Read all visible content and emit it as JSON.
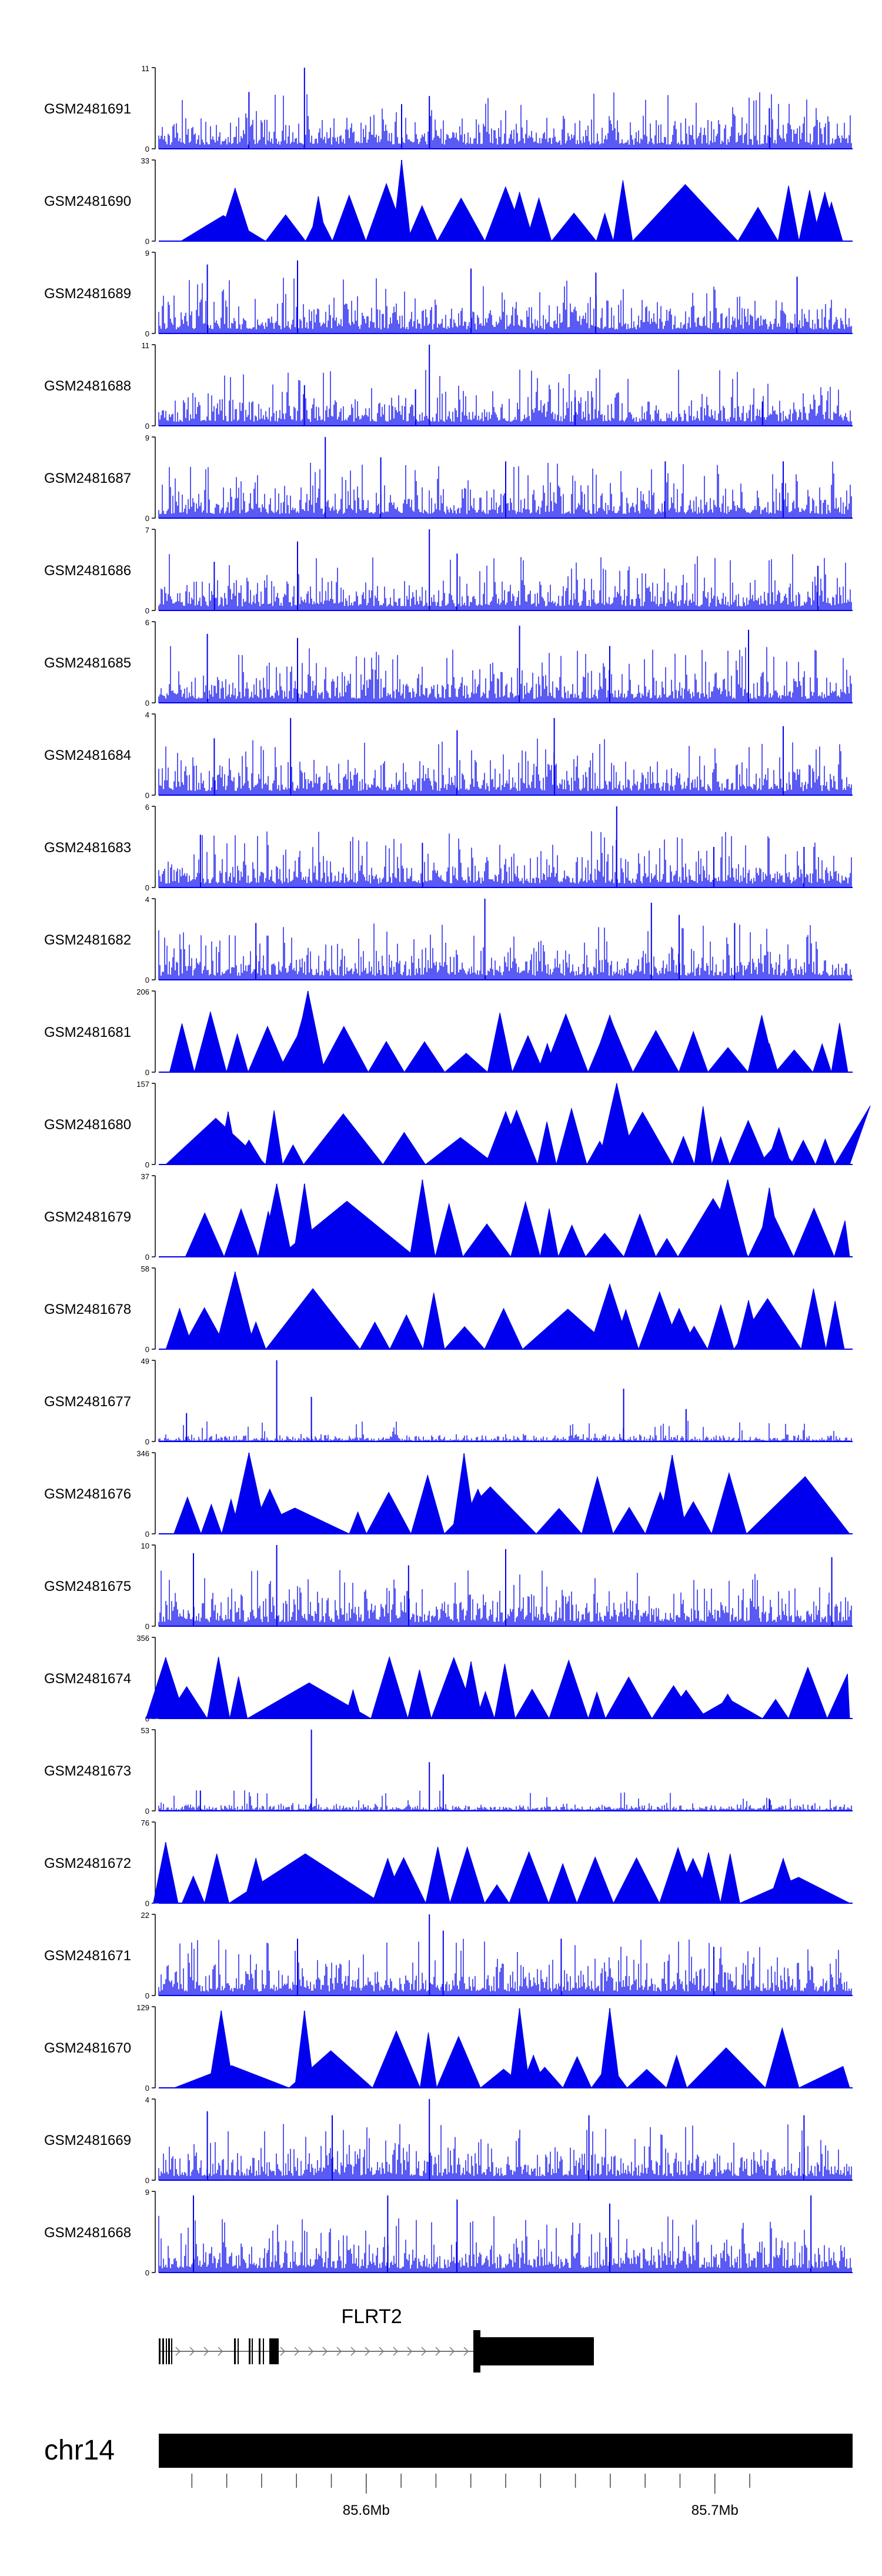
{
  "chart_data": {
    "type": "track-plot",
    "fill_color": "#0000ee",
    "tracks": [
      {
        "name": "GSM2481691",
        "ymin": 0,
        "ymax": 11,
        "style": "dense",
        "seed": 11,
        "peaks": [
          [
            0.21,
            1.0
          ],
          [
            0.13,
            0.7
          ],
          [
            0.39,
            0.65
          ],
          [
            0.35,
            0.55
          ],
          [
            0.88,
            0.5
          ]
        ]
      },
      {
        "name": "GSM2481690",
        "ymin": 0,
        "ymax": 33,
        "style": "triangles",
        "seed": 12,
        "peaks": [
          [
            0.35,
            1.0
          ],
          [
            0.11,
            0.65
          ],
          [
            0.52,
            0.6
          ],
          [
            0.96,
            0.6
          ],
          [
            0.23,
            0.55
          ]
        ]
      },
      {
        "name": "GSM2481689",
        "ymin": 0,
        "ymax": 9,
        "style": "dense",
        "seed": 13,
        "peaks": [
          [
            0.2,
            0.9
          ],
          [
            0.07,
            0.85
          ],
          [
            0.45,
            0.8
          ],
          [
            0.63,
            0.75
          ],
          [
            0.92,
            0.7
          ]
        ]
      },
      {
        "name": "GSM2481688",
        "ymin": 0,
        "ymax": 11,
        "style": "dense",
        "seed": 14,
        "peaks": [
          [
            0.39,
            1.0
          ],
          [
            0.21,
            0.5
          ],
          [
            0.37,
            0.45
          ],
          [
            0.6,
            0.35
          ],
          [
            0.87,
            0.3
          ]
        ]
      },
      {
        "name": "GSM2481687",
        "ymin": 0,
        "ymax": 9,
        "style": "dense",
        "seed": 15,
        "peaks": [
          [
            0.24,
            1.0
          ],
          [
            0.32,
            0.75
          ],
          [
            0.5,
            0.7
          ],
          [
            0.73,
            0.7
          ],
          [
            0.9,
            0.7
          ]
        ]
      },
      {
        "name": "GSM2481686",
        "ymin": 0,
        "ymax": 7,
        "style": "dense",
        "seed": 16,
        "peaks": [
          [
            0.39,
            1.0
          ],
          [
            0.2,
            0.85
          ],
          [
            0.43,
            0.7
          ],
          [
            0.08,
            0.6
          ],
          [
            0.95,
            0.55
          ]
        ]
      },
      {
        "name": "GSM2481685",
        "ymin": 0,
        "ymax": 6,
        "style": "dense",
        "seed": 17,
        "peaks": [
          [
            0.52,
            0.95
          ],
          [
            0.07,
            0.85
          ],
          [
            0.2,
            0.8
          ],
          [
            0.85,
            0.9
          ],
          [
            0.65,
            0.7
          ]
        ]
      },
      {
        "name": "GSM2481684",
        "ymin": 0,
        "ymax": 4,
        "style": "dense",
        "seed": 18,
        "peaks": [
          [
            0.19,
            0.95
          ],
          [
            0.57,
            0.95
          ],
          [
            0.43,
            0.8
          ],
          [
            0.08,
            0.7
          ],
          [
            0.9,
            0.85
          ]
        ]
      },
      {
        "name": "GSM2481683",
        "ymin": 0,
        "ymax": 6,
        "style": "dense",
        "seed": 19,
        "peaks": [
          [
            0.66,
            1.0
          ],
          [
            0.06,
            0.65
          ],
          [
            0.38,
            0.55
          ],
          [
            0.8,
            0.5
          ],
          [
            0.93,
            0.5
          ]
        ]
      },
      {
        "name": "GSM2481682",
        "ymin": 0,
        "ymax": 4,
        "style": "dense",
        "seed": 20,
        "peaks": [
          [
            0.47,
            1.0
          ],
          [
            0.71,
            0.95
          ],
          [
            0.75,
            0.8
          ],
          [
            0.14,
            0.7
          ],
          [
            0.83,
            0.7
          ]
        ]
      },
      {
        "name": "GSM2481681",
        "ymin": 0,
        "ymax": 206,
        "style": "triangles",
        "seed": 21,
        "peaks": [
          [
            0.215,
            1.0
          ],
          [
            0.65,
            0.7
          ],
          [
            0.2,
            0.45
          ],
          [
            0.88,
            0.35
          ],
          [
            0.56,
            0.35
          ]
        ]
      },
      {
        "name": "GSM2481680",
        "ymin": 0,
        "ymax": 157,
        "style": "triangles",
        "seed": 22,
        "peaks": [
          [
            0.1,
            0.65
          ],
          [
            0.5,
            0.65
          ],
          [
            0.66,
            1.0
          ],
          [
            0.13,
            0.3
          ],
          [
            0.89,
            0.25
          ]
        ]
      },
      {
        "name": "GSM2481679",
        "ymin": 0,
        "ymax": 37,
        "style": "triangles",
        "seed": 23,
        "peaks": [
          [
            0.38,
            0.95
          ],
          [
            0.17,
            0.9
          ],
          [
            0.21,
            0.9
          ],
          [
            0.82,
            0.95
          ],
          [
            0.88,
            0.85
          ]
        ]
      },
      {
        "name": "GSM2481678",
        "ymin": 0,
        "ymax": 58,
        "style": "triangles",
        "seed": 24,
        "peaks": [
          [
            0.11,
            0.95
          ],
          [
            0.65,
            0.8
          ],
          [
            0.85,
            0.6
          ],
          [
            0.75,
            0.5
          ],
          [
            0.03,
            0.5
          ]
        ]
      },
      {
        "name": "GSM2481677",
        "ymin": 0,
        "ymax": 49,
        "style": "sparse",
        "seed": 25,
        "peaks": [
          [
            0.17,
            1.0
          ],
          [
            0.67,
            0.65
          ],
          [
            0.22,
            0.55
          ],
          [
            0.04,
            0.35
          ],
          [
            0.76,
            0.4
          ]
        ]
      },
      {
        "name": "GSM2481676",
        "ymin": 0,
        "ymax": 346,
        "style": "triangles",
        "seed": 26,
        "peaks": [
          [
            0.13,
            1.0
          ],
          [
            0.44,
            0.99
          ],
          [
            0.74,
            0.97
          ],
          [
            0.16,
            0.55
          ],
          [
            0.46,
            0.55
          ]
        ]
      },
      {
        "name": "GSM2481675",
        "ymin": 0,
        "ymax": 10,
        "style": "dense",
        "seed": 27,
        "peaks": [
          [
            0.17,
            1.0
          ],
          [
            0.05,
            0.9
          ],
          [
            0.5,
            0.95
          ],
          [
            0.97,
            0.85
          ],
          [
            0.36,
            0.75
          ]
        ]
      },
      {
        "name": "GSM2481674",
        "ymin": 0,
        "ymax": 356,
        "style": "triangles",
        "seed": 28,
        "peaks": [
          [
            0.45,
            0.7
          ],
          [
            0.01,
            0.75
          ],
          [
            0.28,
            0.35
          ],
          [
            0.76,
            0.35
          ],
          [
            0.82,
            0.3
          ]
        ]
      },
      {
        "name": "GSM2481673",
        "ymin": 0,
        "ymax": 53,
        "style": "sparse",
        "seed": 29,
        "peaks": [
          [
            0.22,
            1.0
          ],
          [
            0.39,
            0.6
          ],
          [
            0.41,
            0.45
          ],
          [
            0.06,
            0.25
          ],
          [
            0.88,
            0.15
          ]
        ]
      },
      {
        "name": "GSM2481672",
        "ymin": 0,
        "ymax": 76,
        "style": "triangles",
        "seed": 30,
        "peaks": [
          [
            0.01,
            0.75
          ],
          [
            0.14,
            0.55
          ],
          [
            0.33,
            0.55
          ],
          [
            0.77,
            0.55
          ],
          [
            0.9,
            0.55
          ]
        ]
      },
      {
        "name": "GSM2481671",
        "ymin": 0,
        "ymax": 22,
        "style": "dense",
        "seed": 31,
        "peaks": [
          [
            0.39,
            1.0
          ],
          [
            0.41,
            0.8
          ],
          [
            0.2,
            0.7
          ],
          [
            0.58,
            0.7
          ],
          [
            0.8,
            0.6
          ]
        ]
      },
      {
        "name": "GSM2481670",
        "ymin": 0,
        "ymax": 129,
        "style": "triangles",
        "seed": 32,
        "peaks": [
          [
            0.52,
            0.98
          ],
          [
            0.65,
            0.98
          ],
          [
            0.09,
            0.95
          ],
          [
            0.21,
            0.95
          ],
          [
            0.54,
            0.4
          ]
        ]
      },
      {
        "name": "GSM2481669",
        "ymin": 0,
        "ymax": 4,
        "style": "dense",
        "seed": 33,
        "peaks": [
          [
            0.39,
            1.0
          ],
          [
            0.07,
            0.85
          ],
          [
            0.25,
            0.8
          ],
          [
            0.62,
            0.8
          ],
          [
            0.93,
            0.8
          ]
        ]
      },
      {
        "name": "GSM2481668",
        "ymin": 0,
        "ymax": 9,
        "style": "dense",
        "seed": 34,
        "peaks": [
          [
            0.05,
            0.95
          ],
          [
            0.33,
            0.95
          ],
          [
            0.43,
            0.9
          ],
          [
            0.65,
            0.85
          ],
          [
            0.94,
            0.95
          ]
        ]
      }
    ],
    "gene": {
      "name": "FLRT2",
      "strand": "+"
    },
    "chromosome": {
      "name": "chr14"
    },
    "x_axis": {
      "unit": "Mb",
      "tick_labels": [
        "85.6Mb",
        "85.7Mb"
      ],
      "labeled_ticks": [
        85.6,
        85.7
      ],
      "minor_ticks": [
        85.55,
        85.56,
        85.57,
        85.58,
        85.59,
        85.6,
        85.61,
        85.62,
        85.63,
        85.64,
        85.65,
        85.66,
        85.67,
        85.68,
        85.69,
        85.7,
        85.71
      ],
      "range": [
        85.5405,
        85.7395
      ]
    }
  }
}
